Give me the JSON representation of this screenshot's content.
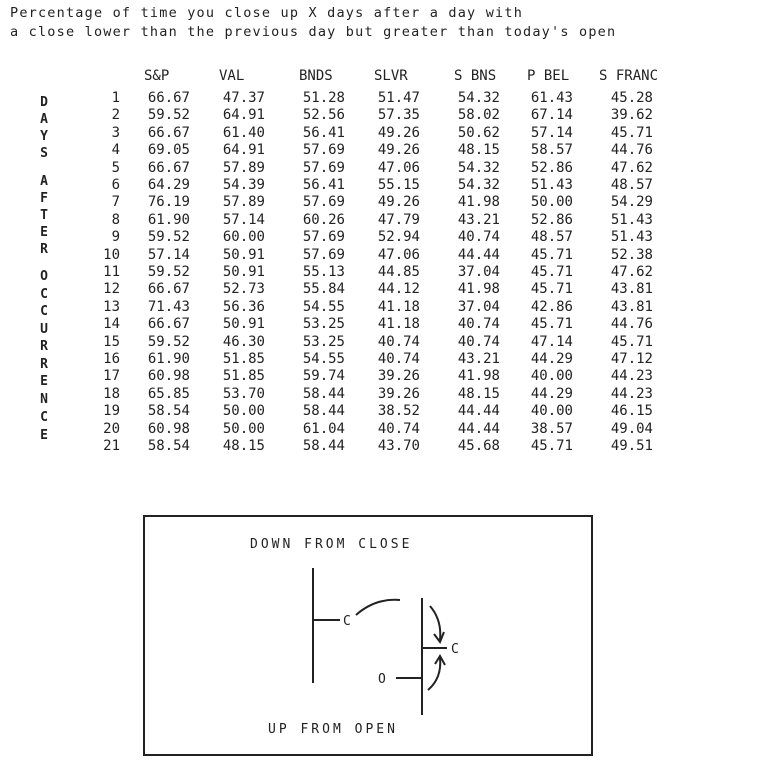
{
  "title": {
    "line1": "Percentage of time you close up X days after a day with",
    "line2": "a close lower than the previous day but greater than today's open"
  },
  "side_label": [
    "D",
    "A",
    "Y",
    "S",
    "A",
    "F",
    "T",
    "E",
    "R",
    "O",
    "C",
    "C",
    "U",
    "R",
    "R",
    "E",
    "N",
    "C",
    "E"
  ],
  "table": {
    "columns": [
      "S&P",
      "VAL",
      "BNDS",
      "SLVR",
      "S BNS",
      "P BEL",
      "S FRANC"
    ],
    "rows": [
      {
        "day": "1",
        "values": [
          "66.67",
          "47.37",
          "51.28",
          "51.47",
          "54.32",
          "61.43",
          "45.28"
        ]
      },
      {
        "day": "2",
        "values": [
          "59.52",
          "64.91",
          "52.56",
          "57.35",
          "58.02",
          "67.14",
          "39.62"
        ]
      },
      {
        "day": "3",
        "values": [
          "66.67",
          "61.40",
          "56.41",
          "49.26",
          "50.62",
          "57.14",
          "45.71"
        ]
      },
      {
        "day": "4",
        "values": [
          "69.05",
          "64.91",
          "57.69",
          "49.26",
          "48.15",
          "58.57",
          "44.76"
        ]
      },
      {
        "day": "5",
        "values": [
          "66.67",
          "57.89",
          "57.69",
          "47.06",
          "54.32",
          "52.86",
          "47.62"
        ]
      },
      {
        "day": "6",
        "values": [
          "64.29",
          "54.39",
          "56.41",
          "55.15",
          "54.32",
          "51.43",
          "48.57"
        ]
      },
      {
        "day": "7",
        "values": [
          "76.19",
          "57.89",
          "57.69",
          "49.26",
          "41.98",
          "50.00",
          "54.29"
        ]
      },
      {
        "day": "8",
        "values": [
          "61.90",
          "57.14",
          "60.26",
          "47.79",
          "43.21",
          "52.86",
          "51.43"
        ]
      },
      {
        "day": "9",
        "values": [
          "59.52",
          "60.00",
          "57.69",
          "52.94",
          "40.74",
          "48.57",
          "51.43"
        ]
      },
      {
        "day": "10",
        "values": [
          "57.14",
          "50.91",
          "57.69",
          "47.06",
          "44.44",
          "45.71",
          "52.38"
        ]
      },
      {
        "day": "11",
        "values": [
          "59.52",
          "50.91",
          "55.13",
          "44.85",
          "37.04",
          "45.71",
          "47.62"
        ]
      },
      {
        "day": "12",
        "values": [
          "66.67",
          "52.73",
          "55.84",
          "44.12",
          "41.98",
          "45.71",
          "43.81"
        ]
      },
      {
        "day": "13",
        "values": [
          "71.43",
          "56.36",
          "54.55",
          "41.18",
          "37.04",
          "42.86",
          "43.81"
        ]
      },
      {
        "day": "14",
        "values": [
          "66.67",
          "50.91",
          "53.25",
          "41.18",
          "40.74",
          "45.71",
          "44.76"
        ]
      },
      {
        "day": "15",
        "values": [
          "59.52",
          "46.30",
          "53.25",
          "40.74",
          "40.74",
          "47.14",
          "45.71"
        ]
      },
      {
        "day": "16",
        "values": [
          "61.90",
          "51.85",
          "54.55",
          "40.74",
          "43.21",
          "44.29",
          "47.12"
        ]
      },
      {
        "day": "17",
        "values": [
          "60.98",
          "51.85",
          "59.74",
          "39.26",
          "41.98",
          "40.00",
          "44.23"
        ]
      },
      {
        "day": "18",
        "values": [
          "65.85",
          "53.70",
          "58.44",
          "39.26",
          "48.15",
          "44.29",
          "44.23"
        ]
      },
      {
        "day": "19",
        "values": [
          "58.54",
          "50.00",
          "58.44",
          "38.52",
          "44.44",
          "40.00",
          "46.15"
        ]
      },
      {
        "day": "20",
        "values": [
          "60.98",
          "50.00",
          "61.04",
          "40.74",
          "44.44",
          "38.57",
          "49.04"
        ]
      },
      {
        "day": "21",
        "values": [
          "58.54",
          "48.15",
          "58.44",
          "43.70",
          "45.68",
          "45.71",
          "49.51"
        ]
      }
    ]
  },
  "diagram": {
    "top_label": "DOWN FROM CLOSE",
    "bottom_label": "UP FROM OPEN",
    "bar1_close": "C",
    "bar2_close": "C",
    "bar2_open": "O"
  }
}
